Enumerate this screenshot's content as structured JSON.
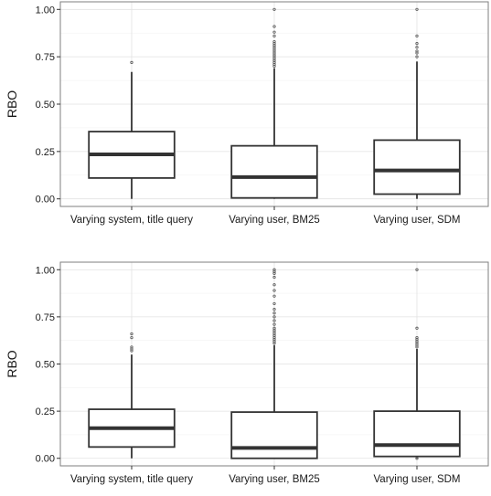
{
  "chart_data": [
    {
      "type": "box",
      "ylabel": "RBO",
      "ylim": [
        -0.04,
        1.04
      ],
      "yticks": [
        0.0,
        0.25,
        0.5,
        0.75,
        1.0
      ],
      "ytick_labels": [
        "0.00",
        "0.25",
        "0.50",
        "0.75",
        "1.00"
      ],
      "grid": true,
      "categories": [
        "Varying system, title query",
        "Varying user, BM25",
        "Varying user, SDM"
      ],
      "boxes": [
        {
          "whisker_low": 0.0,
          "q1": 0.11,
          "median": 0.235,
          "q3": 0.355,
          "whisker_high": 0.67,
          "outliers": [
            0.72
          ]
        },
        {
          "whisker_low": 0.0,
          "q1": 0.005,
          "median": 0.115,
          "q3": 0.28,
          "whisker_high": 0.69,
          "outliers": [
            0.7,
            0.71,
            0.72,
            0.73,
            0.74,
            0.75,
            0.76,
            0.77,
            0.78,
            0.79,
            0.8,
            0.81,
            0.82,
            0.83,
            0.86,
            0.88,
            0.91,
            1.0
          ]
        },
        {
          "whisker_low": 0.0,
          "q1": 0.025,
          "median": 0.15,
          "q3": 0.31,
          "whisker_high": 0.725,
          "outliers": [
            0.75,
            0.77,
            0.78,
            0.8,
            0.82,
            0.86,
            1.0
          ]
        }
      ]
    },
    {
      "type": "box",
      "ylabel": "RBO",
      "ylim": [
        -0.04,
        1.04
      ],
      "yticks": [
        0.0,
        0.25,
        0.5,
        0.75,
        1.0
      ],
      "ytick_labels": [
        "0.00",
        "0.25",
        "0.50",
        "0.75",
        "1.00"
      ],
      "grid": true,
      "categories": [
        "Varying system, title query",
        "Varying user, BM25",
        "Varying user, SDM"
      ],
      "boxes": [
        {
          "whisker_low": 0.0,
          "q1": 0.06,
          "median": 0.16,
          "q3": 0.26,
          "whisker_high": 0.55,
          "outliers": [
            0.57,
            0.58,
            0.59,
            0.64,
            0.66
          ]
        },
        {
          "whisker_low": 0.0,
          "q1": 0.0,
          "median": 0.055,
          "q3": 0.245,
          "whisker_high": 0.6,
          "outliers": [
            0.61,
            0.62,
            0.63,
            0.64,
            0.65,
            0.66,
            0.67,
            0.68,
            0.69,
            0.71,
            0.73,
            0.75,
            0.77,
            0.79,
            0.82,
            0.86,
            0.89,
            0.92,
            0.96,
            0.98,
            0.99,
            1.0
          ]
        },
        {
          "whisker_low": 0.0,
          "q1": 0.01,
          "median": 0.07,
          "q3": 0.25,
          "whisker_high": 0.58,
          "outliers": [
            0.0,
            0.59,
            0.6,
            0.61,
            0.62,
            0.63,
            0.64,
            0.69,
            1.0
          ]
        }
      ]
    }
  ]
}
